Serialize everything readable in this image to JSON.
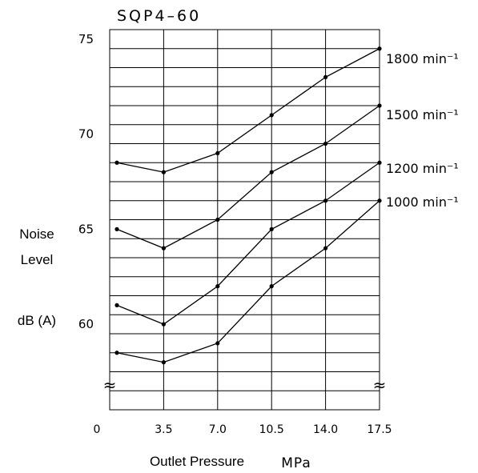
{
  "chart_data": {
    "type": "line",
    "title": "SQP4–60",
    "xlabel": "Outlet Pressure",
    "xunit": "MPa",
    "ylabel_lines": [
      "Noise",
      "Level"
    ],
    "yunit": "dB (A)",
    "x_ticks": [
      "0",
      "3.5",
      "7.0",
      "10.5",
      "14.0",
      "17.5"
    ],
    "y_ticks": [
      "60",
      "65",
      "70",
      "75"
    ],
    "xlim": [
      0,
      17.5
    ],
    "ylim": [
      55.5,
      75.5
    ],
    "axis_break": "≈",
    "grid": true,
    "series": [
      {
        "name": "1800 min⁻¹",
        "x": [
          0,
          3.5,
          7.0,
          10.5,
          14.0,
          17.5
        ],
        "values": [
          68.5,
          68.0,
          69.0,
          71.0,
          73.0,
          74.5
        ]
      },
      {
        "name": "1500 min⁻¹",
        "x": [
          0,
          3.5,
          7.0,
          10.5,
          14.0,
          17.5
        ],
        "values": [
          65.0,
          64.0,
          65.5,
          68.0,
          69.5,
          71.5
        ]
      },
      {
        "name": "1200 min⁻¹",
        "x": [
          0,
          3.5,
          7.0,
          10.5,
          14.0,
          17.5
        ],
        "values": [
          61.0,
          60.0,
          62.0,
          65.0,
          66.5,
          68.5
        ]
      },
      {
        "name": "1000 min⁻¹",
        "x": [
          0,
          3.5,
          7.0,
          10.5,
          14.0,
          17.5
        ],
        "values": [
          58.5,
          58.0,
          59.0,
          62.0,
          64.0,
          66.5
        ]
      }
    ]
  }
}
